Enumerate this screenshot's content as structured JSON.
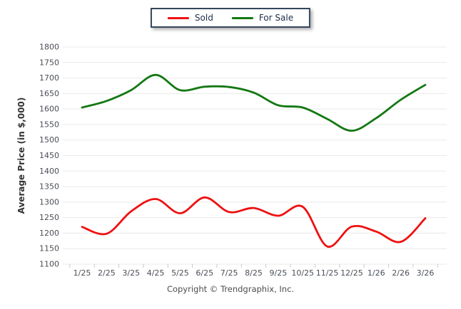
{
  "legend": {
    "items": [
      {
        "label": "Sold",
        "color": "#ee1111"
      },
      {
        "label": "For Sale",
        "color": "#137813"
      }
    ]
  },
  "footer": "Copyright © Trendgraphix, Inc.",
  "chart_data": {
    "type": "line",
    "title": "",
    "xlabel": "",
    "ylabel": "Average Price (in $,000)",
    "categories": [
      "1/25",
      "2/25",
      "3/25",
      "4/25",
      "5/25",
      "6/25",
      "7/25",
      "8/25",
      "9/25",
      "10/25",
      "11/25",
      "12/25",
      "1/26",
      "2/26",
      "3/26"
    ],
    "series": [
      {
        "name": "Sold",
        "color": "#ee1111",
        "values": [
          1220,
          1198,
          1270,
          1310,
          1264,
          1315,
          1268,
          1281,
          1256,
          1285,
          1157,
          1221,
          1205,
          1172,
          1248
        ]
      },
      {
        "name": "For Sale",
        "color": "#137813",
        "values": [
          1605,
          1626,
          1661,
          1710,
          1661,
          1672,
          1671,
          1653,
          1612,
          1605,
          1568,
          1530,
          1571,
          1630,
          1678
        ]
      }
    ],
    "ylim": [
      1100,
      1800
    ],
    "ytick_step": 50,
    "grid": true,
    "legend_position": "top-center"
  },
  "colors": {
    "grid": "#e9e9e9",
    "tick_mark": "#c9c9c9",
    "tick_text": "#4a4f57",
    "axis_title": "#333333",
    "legend_border": "#33455c",
    "background": "#ffffff"
  }
}
